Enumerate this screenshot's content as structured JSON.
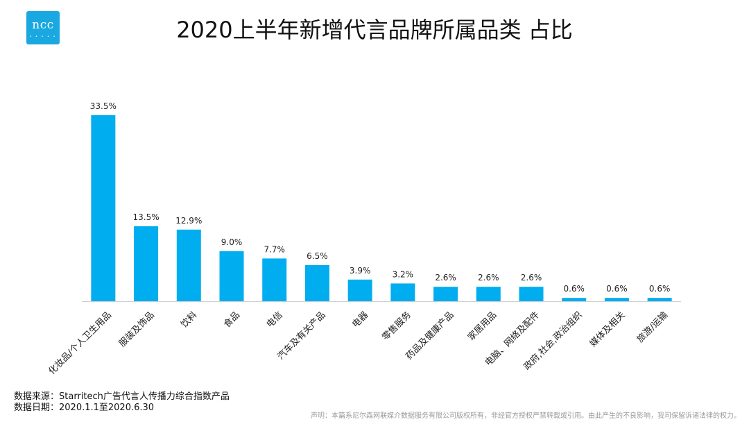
{
  "logo": {
    "text": "ncc",
    "dots": "• • • • •"
  },
  "title": "2020上半年新增代言品牌所属品类 占比",
  "footer": {
    "source": "数据来源：Starritech广告代言人传播力综合指数产品",
    "date": "数据日期：2020.1.1至2020.6.30",
    "notice": "声明：本篇系尼尔森网联媒介数据服务有限公司版权所有，非经官方授权严禁转载或引用。由此产生的不良影响，我司保留诉诸法律的权力。"
  },
  "colors": {
    "bar": "#00aeef",
    "axis": "#d0d0d0",
    "logo": "#1aa8e0"
  },
  "chart_data": {
    "type": "bar",
    "title": "2020上半年新增代言品牌所属品类 占比",
    "xlabel": "",
    "ylabel": "",
    "ylim": [
      0,
      35
    ],
    "grid": false,
    "categories": [
      "化妆品/个人卫生用品",
      "服装及饰品",
      "饮料",
      "食品",
      "电信",
      "汽车及有关产品",
      "电器",
      "零售服务",
      "药品及健康产品",
      "家居用品",
      "电脑、网络及配件",
      "政府,社会,政治组织",
      "媒体及相关",
      "旅游/运输"
    ],
    "values": [
      33.5,
      13.5,
      12.9,
      9.0,
      7.7,
      6.5,
      3.9,
      3.2,
      2.6,
      2.6,
      2.6,
      0.6,
      0.6,
      0.6
    ],
    "value_labels": [
      "33.5%",
      "13.5%",
      "12.9%",
      "9.0%",
      "7.7%",
      "6.5%",
      "3.9%",
      "3.2%",
      "2.6%",
      "2.6%",
      "2.6%",
      "0.6%",
      "0.6%",
      "0.6%"
    ]
  }
}
